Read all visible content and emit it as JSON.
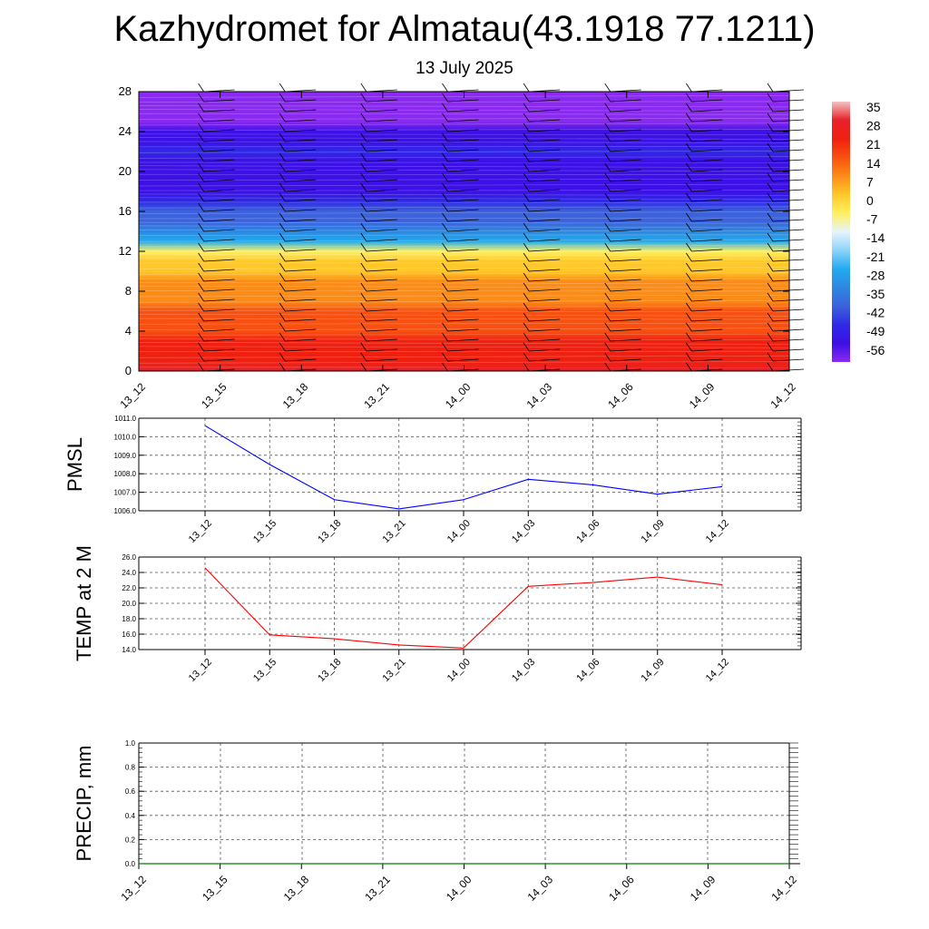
{
  "header": {
    "title": "Kazhydromet for Almatau(43.1918 77.1211)",
    "date": "13 July 2025"
  },
  "chart_data": [
    {
      "type": "heatmap",
      "title": "",
      "x_labels": [
        "13_12",
        "13_15",
        "13_18",
        "13_21",
        "14_00",
        "14_03",
        "14_06",
        "14_09",
        "14_12"
      ],
      "y_ticks": [
        0,
        4,
        8,
        12,
        16,
        20,
        24,
        28
      ],
      "ylim": [
        0,
        28
      ],
      "levels": [
        0,
        1,
        2,
        3,
        4,
        5,
        6,
        7,
        8,
        9,
        10,
        11,
        12,
        13,
        14,
        15,
        16,
        17,
        18,
        19,
        20,
        21,
        22,
        23,
        24,
        25,
        26,
        27,
        28
      ],
      "temperature_profile": [
        22,
        20,
        18,
        15,
        13,
        10,
        8,
        6,
        3,
        1,
        -2,
        -5,
        -10,
        -30,
        -38,
        -44,
        -48,
        -52,
        -57,
        -60,
        -62,
        -58,
        -55,
        -60,
        -63,
        -65,
        -66,
        -67,
        -68
      ],
      "colorbar": {
        "labels": [
          "35",
          "28",
          "21",
          "14",
          "7",
          "0",
          "-7",
          "-14",
          "-21",
          "-28",
          "-35",
          "-42",
          "-49",
          "-56"
        ],
        "color_stops": [
          {
            "v": 35,
            "c": "#f4c3c3"
          },
          {
            "v": 28,
            "c": "#e8202a"
          },
          {
            "v": 21,
            "c": "#f02010"
          },
          {
            "v": 14,
            "c": "#f85010"
          },
          {
            "v": 7,
            "c": "#fc8c18"
          },
          {
            "v": 0,
            "c": "#ffc828"
          },
          {
            "v": -7,
            "c": "#fff060"
          },
          {
            "v": -14,
            "c": "#e6f4fc"
          },
          {
            "v": -21,
            "c": "#8cd4f8"
          },
          {
            "v": -28,
            "c": "#22aaee"
          },
          {
            "v": -35,
            "c": "#2d88e0"
          },
          {
            "v": -42,
            "c": "#3c62dc"
          },
          {
            "v": -49,
            "c": "#2f2ae6"
          },
          {
            "v": -56,
            "c": "#3c10e6"
          },
          {
            "v": -63,
            "c": "#8a2af0"
          }
        ]
      }
    },
    {
      "type": "line",
      "ylabel": "PMSL",
      "x": [
        "13_12",
        "13_15",
        "13_18",
        "13_21",
        "14_00",
        "14_03",
        "14_06",
        "14_09",
        "14_12"
      ],
      "y_tick_labels": [
        "1006.0",
        "1007.0",
        "1008.0",
        "1009.0",
        "1010.0",
        "1011.0"
      ],
      "ylim": [
        1006.0,
        1011.0
      ],
      "series": [
        {
          "values": [
            1010.6,
            1008.5,
            1006.6,
            1006.1,
            1006.6,
            1007.7,
            1007.4,
            1006.9,
            1007.3
          ],
          "color": "#0000ff"
        }
      ],
      "grid": true
    },
    {
      "type": "line",
      "ylabel": "TEMP at 2 M",
      "x": [
        "13_12",
        "13_15",
        "13_18",
        "13_21",
        "14_00",
        "14_03",
        "14_06",
        "14_09",
        "14_12"
      ],
      "y_tick_labels": [
        "14.0",
        "16.0",
        "18.0",
        "20.0",
        "22.0",
        "24.0",
        "26.0"
      ],
      "ylim": [
        14.0,
        26.0
      ],
      "series": [
        {
          "values": [
            24.6,
            15.9,
            15.4,
            14.6,
            14.2,
            22.2,
            22.7,
            23.4,
            22.4
          ],
          "color": "#ff0000"
        }
      ],
      "grid": true
    },
    {
      "type": "line",
      "ylabel": "PRECIP, mm",
      "x": [
        "13_12",
        "13_15",
        "13_18",
        "13_21",
        "14_00",
        "14_03",
        "14_06",
        "14_09",
        "14_12"
      ],
      "y_tick_labels": [
        "0.0",
        "0.2",
        "0.4",
        "0.6",
        "0.8",
        "1.0"
      ],
      "ylim": [
        0.0,
        1.0
      ],
      "series": [
        {
          "values": [
            0,
            0,
            0,
            0,
            0,
            0,
            0,
            0,
            0
          ],
          "color": "#008000"
        }
      ],
      "grid": true
    }
  ]
}
